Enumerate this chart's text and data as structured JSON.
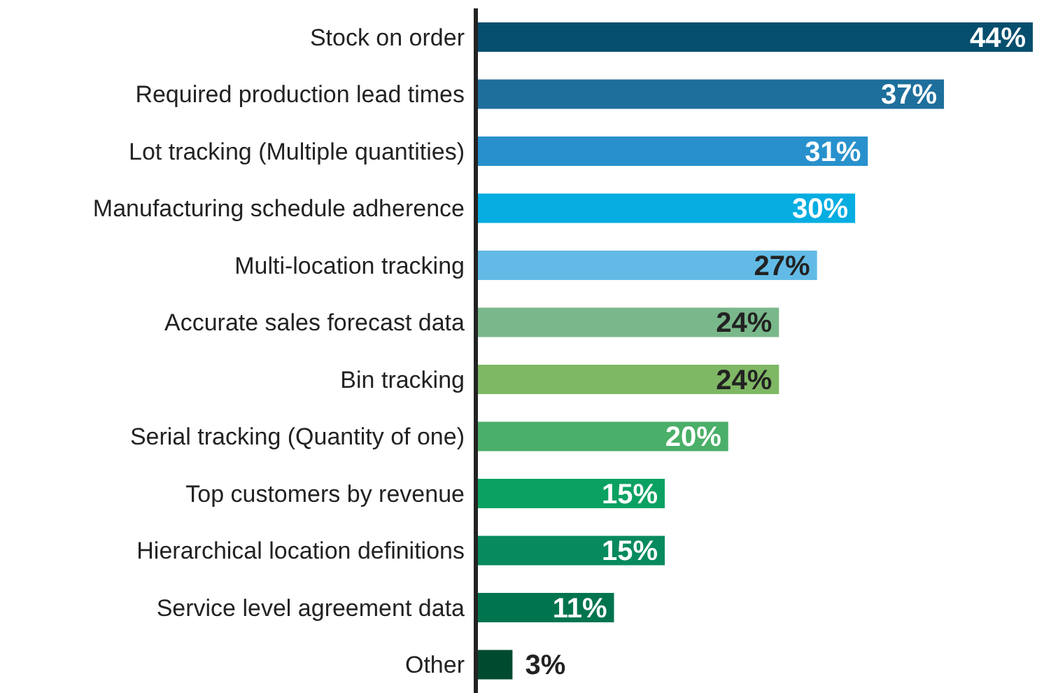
{
  "chart_data": {
    "type": "bar",
    "orientation": "horizontal",
    "value_labels": [
      "44%",
      "37%",
      "31%",
      "30%",
      "27%",
      "24%",
      "24%",
      "20%",
      "15%",
      "15%",
      "11%",
      "3%"
    ],
    "categories": [
      "Stock on order",
      "Required production lead times",
      "Lot tracking (Multiple quantities)",
      "Manufacturing schedule adherence",
      "Multi-location tracking",
      "Accurate sales forecast data",
      "Bin tracking",
      "Serial tracking (Quantity of one)",
      "Top customers by revenue",
      "Hierarchical location definitions",
      "Service level agreement data",
      "Other"
    ],
    "values": [
      44,
      37,
      31,
      30,
      27,
      24,
      24,
      20,
      15,
      15,
      11,
      3
    ],
    "colors": [
      "#064e6e",
      "#1e6f9c",
      "#2891cd",
      "#05ade1",
      "#62bbe6",
      "#79b88a",
      "#7fb864",
      "#4aaf68",
      "#0ba162",
      "#078a5e",
      "#00744f",
      "#004b2f"
    ]
  }
}
